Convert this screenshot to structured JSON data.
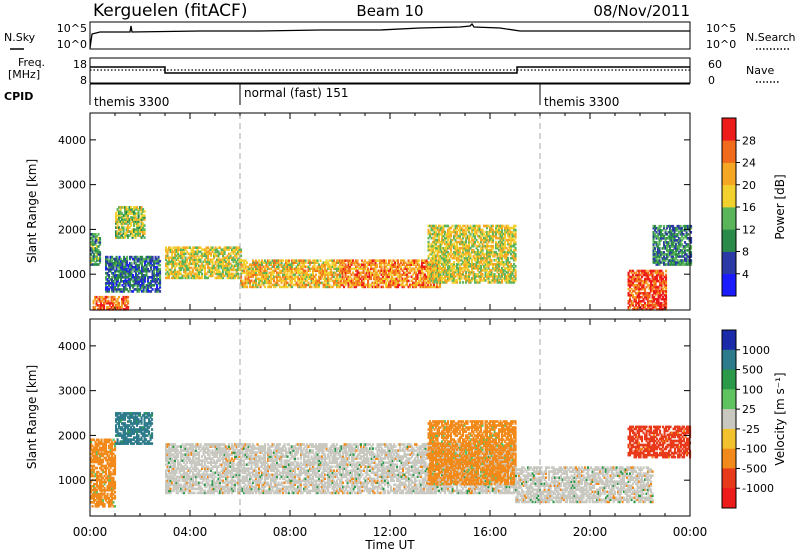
{
  "header": {
    "station": "Kerguelen (fitACF)",
    "beam": "Beam 10",
    "date": "08/Nov/2011"
  },
  "noise_panel": {
    "left_label": "N.Sky",
    "right_label": "N.Search",
    "left_ticks": [
      "10^5",
      "10^0"
    ],
    "right_ticks": [
      "10^5",
      "10^0"
    ]
  },
  "freq_panel": {
    "left_label_line1": "Freq.",
    "left_label_line2": "[MHz]",
    "right_label": "Nave",
    "left_ticks": [
      "18",
      "8"
    ],
    "right_ticks": [
      "60",
      "0"
    ]
  },
  "cpid_panel": {
    "label": "CPID",
    "segments": [
      {
        "name": "themis 3300",
        "start_hour": 0,
        "end_hour": 6
      },
      {
        "name": "normal (fast) 151",
        "start_hour": 6,
        "end_hour": 18
      },
      {
        "name": "themis 3300",
        "start_hour": 18,
        "end_hour": 24
      }
    ]
  },
  "power_panel": {
    "ylabel": "Slant Range [km]",
    "yticks": [
      "1000",
      "2000",
      "3000",
      "4000"
    ],
    "colorbar_label": "Power [dB]",
    "colorbar_ticks": [
      "4",
      "8",
      "12",
      "16",
      "20",
      "24",
      "28"
    ],
    "colors": [
      "#1b1bff",
      "#2c3aa6",
      "#2a8a4a",
      "#5ab55a",
      "#f2d12e",
      "#f5a623",
      "#f26a1b",
      "#ee1b1b"
    ]
  },
  "velocity_panel": {
    "ylabel": "Slant Range [km]",
    "yticks": [
      "1000",
      "2000",
      "3000",
      "4000"
    ],
    "colorbar_label": "Velocity [m s⁻¹]",
    "colorbar_ticks": [
      "1000",
      "500",
      "100",
      "25",
      "-25",
      "-100",
      "-500",
      "-1000"
    ],
    "colors": [
      "#1b2aa8",
      "#2c7a8a",
      "#2a9a4a",
      "#5fc45f",
      "#c8c8c0",
      "#f2c22e",
      "#f28a1b",
      "#e83a1b",
      "#ee1b1b"
    ]
  },
  "xaxis": {
    "ticks": [
      "00:00",
      "04:00",
      "08:00",
      "12:00",
      "16:00",
      "20:00",
      "00:00"
    ],
    "label": "Time UT"
  },
  "chart_data": {
    "type": "heatmap",
    "title": "Kerguelen (fitACF)  Beam 10  08/Nov/2011",
    "xlabel": "Time UT",
    "ylabel": "Slant Range [km]",
    "xlim": [
      0,
      24
    ],
    "ylim": [
      200,
      4600
    ],
    "power_colorbar": {
      "label": "Power [dB]",
      "range": [
        0,
        32
      ],
      "ticks": [
        4,
        8,
        12,
        16,
        20,
        24,
        28
      ]
    },
    "velocity_colorbar": {
      "label": "Velocity [m s-1]",
      "ticks": [
        1000,
        500,
        100,
        25,
        -25,
        -100,
        -500,
        -1000
      ]
    },
    "power_echo_regions": [
      {
        "t_start": 0.0,
        "t_end": 0.4,
        "r_low": 1200,
        "r_high": 1900,
        "power_db": 12
      },
      {
        "t_start": 0.1,
        "t_end": 1.5,
        "r_low": 200,
        "r_high": 500,
        "power_db": 26
      },
      {
        "t_start": 1.0,
        "t_end": 2.2,
        "r_low": 1800,
        "r_high": 2500,
        "power_db": 16
      },
      {
        "t_start": 0.6,
        "t_end": 2.8,
        "r_low": 600,
        "r_high": 1400,
        "power_db": 8
      },
      {
        "t_start": 3.0,
        "t_end": 6.0,
        "r_low": 900,
        "r_high": 1600,
        "power_db": 18
      },
      {
        "t_start": 6.0,
        "t_end": 10.0,
        "r_low": 700,
        "r_high": 1300,
        "power_db": 20
      },
      {
        "t_start": 10.0,
        "t_end": 14.0,
        "r_low": 700,
        "r_high": 1300,
        "power_db": 24
      },
      {
        "t_start": 13.5,
        "t_end": 17.0,
        "r_low": 800,
        "r_high": 2100,
        "power_db": 18
      },
      {
        "t_start": 21.5,
        "t_end": 23.0,
        "r_low": 200,
        "r_high": 1100,
        "power_db": 28
      },
      {
        "t_start": 22.5,
        "t_end": 24.0,
        "r_low": 1200,
        "r_high": 2100,
        "power_db": 10
      }
    ],
    "velocity_echo_regions": [
      {
        "t_start": 0.0,
        "t_end": 1.0,
        "r_low": 400,
        "r_high": 1900,
        "velocity": -100
      },
      {
        "t_start": 1.0,
        "t_end": 2.5,
        "r_low": 1800,
        "r_high": 2500,
        "velocity": 500
      },
      {
        "t_start": 3.0,
        "t_end": 17.0,
        "r_low": 700,
        "r_high": 1800,
        "velocity": 0
      },
      {
        "t_start": 13.5,
        "t_end": 17.0,
        "r_low": 900,
        "r_high": 2300,
        "velocity": -100
      },
      {
        "t_start": 17.0,
        "t_end": 22.5,
        "r_low": 500,
        "r_high": 1300,
        "velocity": 0
      },
      {
        "t_start": 21.5,
        "t_end": 24.0,
        "r_low": 1500,
        "r_high": 2200,
        "velocity": -500
      }
    ]
  }
}
